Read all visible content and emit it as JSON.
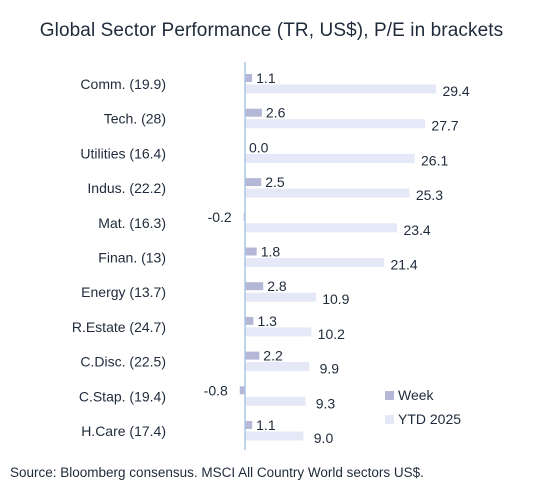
{
  "chart_data": {
    "type": "bar",
    "orientation": "horizontal",
    "title": "Global Sector Performance (TR, US$), P/E in brackets",
    "source": "Source: Bloomberg consensus. MSCI All Country World sectors US$.",
    "categories": [
      "Comm. (19.9)",
      "Tech. (28)",
      "Utilities (16.4)",
      "Indus. (22.2)",
      "Mat. (16.3)",
      "Finan. (13)",
      "Energy (13.7)",
      "R.Estate (24.7)",
      "C.Disc. (22.5)",
      "C.Stap. (19.4)",
      "H.Care (17.4)"
    ],
    "series": [
      {
        "name": "Week",
        "color": "#b4b8d6",
        "values": [
          1.1,
          2.6,
          0.0,
          2.5,
          -0.2,
          1.8,
          2.8,
          1.3,
          2.2,
          -0.8,
          1.1
        ],
        "labels": [
          "1.1",
          "2.6",
          "0.0",
          "2.5",
          "-0.2",
          "1.8",
          "2.8",
          "1.3",
          "2.2",
          "-0.8",
          "1.1"
        ]
      },
      {
        "name": "YTD 2025",
        "color": "#e4e8f7",
        "values": [
          29.4,
          27.7,
          26.1,
          25.3,
          23.4,
          21.4,
          10.9,
          10.2,
          9.9,
          9.3,
          9.0
        ],
        "labels": [
          "29.4",
          "27.7",
          "26.1",
          "25.3",
          "23.4",
          "21.4",
          "10.9",
          "10.2",
          "9.9",
          "9.3",
          "9.0"
        ]
      }
    ],
    "axis_color": "#a9c7e6",
    "legend_position": "bottom-right",
    "grid": false
  }
}
